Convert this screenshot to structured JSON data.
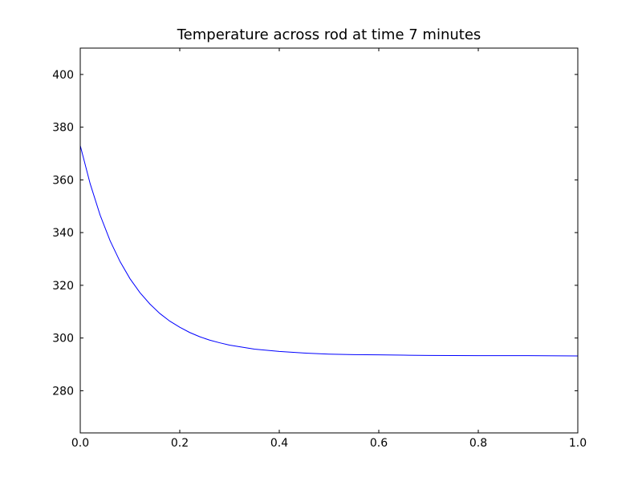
{
  "chart_data": {
    "type": "line",
    "title": "Temperature across rod at time 7 minutes",
    "xlabel": "",
    "ylabel": "",
    "xlim": [
      0.0,
      1.0
    ],
    "ylim": [
      264,
      410
    ],
    "grid": false,
    "xticks": [
      {
        "value": 0.0,
        "label": "0.0"
      },
      {
        "value": 0.2,
        "label": "0.2"
      },
      {
        "value": 0.4,
        "label": "0.4"
      },
      {
        "value": 0.6,
        "label": "0.6"
      },
      {
        "value": 0.8,
        "label": "0.8"
      },
      {
        "value": 1.0,
        "label": "1.0"
      }
    ],
    "yticks": [
      {
        "value": 280,
        "label": "280"
      },
      {
        "value": 300,
        "label": "300"
      },
      {
        "value": 320,
        "label": "320"
      },
      {
        "value": 340,
        "label": "340"
      },
      {
        "value": 360,
        "label": "360"
      },
      {
        "value": 380,
        "label": "380"
      },
      {
        "value": 400,
        "label": "400"
      }
    ],
    "series": [
      {
        "color": "#0000ff",
        "x": [
          0.0,
          0.02,
          0.04,
          0.06,
          0.08,
          0.1,
          0.12,
          0.14,
          0.16,
          0.18,
          0.2,
          0.22,
          0.24,
          0.26,
          0.28,
          0.3,
          0.35,
          0.4,
          0.45,
          0.5,
          0.55,
          0.6,
          0.65,
          0.7,
          0.8,
          0.9,
          1.0
        ],
        "y": [
          373.0,
          358.5,
          346.6,
          336.9,
          329.0,
          322.5,
          317.2,
          312.9,
          309.3,
          306.4,
          304.1,
          302.1,
          300.5,
          299.2,
          298.2,
          297.3,
          295.8,
          294.9,
          294.3,
          293.9,
          293.7,
          293.6,
          293.5,
          293.4,
          293.3,
          293.3,
          293.2
        ]
      }
    ]
  }
}
